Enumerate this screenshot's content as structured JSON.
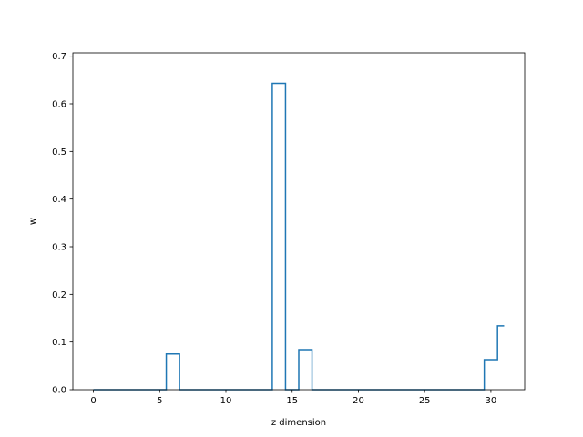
{
  "chart_data": {
    "type": "line",
    "drawstyle": "steps-mid",
    "title": "",
    "xlabel": "z dimension",
    "ylabel": "w",
    "xlim": [
      -1.55,
      32.55
    ],
    "ylim": [
      0,
      0.707
    ],
    "xticks": [
      0,
      5,
      10,
      15,
      20,
      25,
      30
    ],
    "yticks": [
      0.0,
      0.1,
      0.2,
      0.3,
      0.4,
      0.5,
      0.6,
      0.7
    ],
    "grid": false,
    "series": [
      {
        "color": "#1f77b4",
        "x": [
          0,
          1,
          2,
          3,
          4,
          5,
          6,
          7,
          8,
          9,
          10,
          11,
          12,
          13,
          14,
          15,
          16,
          17,
          18,
          19,
          20,
          21,
          22,
          23,
          24,
          25,
          26,
          27,
          28,
          29,
          30,
          31
        ],
        "values": [
          0,
          0,
          0,
          0,
          0,
          0,
          0.075,
          0,
          0,
          0,
          0,
          0,
          0,
          0,
          0.643,
          0,
          0.084,
          0,
          0,
          0,
          0,
          0,
          0,
          0,
          0,
          0,
          0,
          0,
          0,
          0,
          0.063,
          0.134
        ]
      }
    ]
  }
}
